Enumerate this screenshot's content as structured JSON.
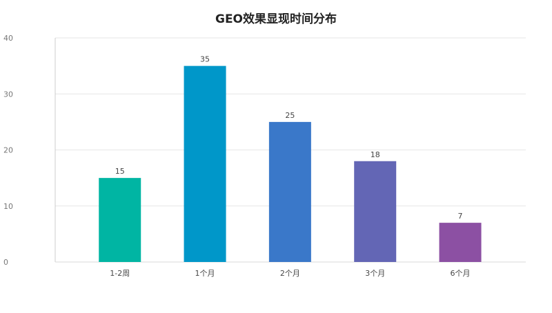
{
  "chart_data": {
    "type": "bar",
    "title": "GEO效果显现时间分布",
    "xlabel": "",
    "ylabel": "",
    "categories": [
      "1-2周",
      "1个月",
      "2个月",
      "3个月",
      "6个月"
    ],
    "values": [
      15,
      35,
      25,
      18,
      7
    ],
    "colors": [
      "#00b5a3",
      "#0097c9",
      "#3a78c9",
      "#6366b5",
      "#8c50a3"
    ],
    "ylim": [
      0,
      40
    ],
    "yticks": [
      0,
      10,
      20,
      30,
      40
    ],
    "grid": true,
    "legend": "none"
  }
}
